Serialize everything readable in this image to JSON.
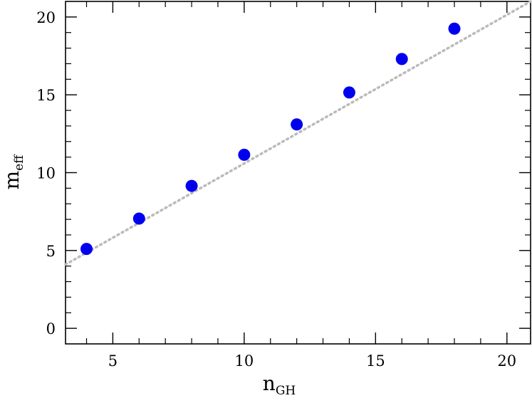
{
  "chart_data": {
    "type": "scatter",
    "xlabel": "n",
    "xlabel_sub": "GH",
    "ylabel": "m",
    "ylabel_sub": "eff",
    "xlim": [
      3.2,
      20.9
    ],
    "ylim": [
      -1.0,
      21.0
    ],
    "x_ticks": [
      5,
      10,
      15,
      20
    ],
    "y_ticks": [
      0,
      5,
      10,
      15,
      20
    ],
    "x_tick_labels": [
      "5",
      "10",
      "15",
      "20"
    ],
    "y_tick_labels": [
      "0",
      "5",
      "10",
      "15",
      "20"
    ],
    "grid": false,
    "series": [
      {
        "x": [
          4,
          6,
          8,
          10,
          12,
          14,
          16,
          18
        ],
        "y": [
          5.1,
          7.05,
          9.15,
          11.15,
          13.1,
          15.15,
          17.3,
          19.25
        ],
        "color": "#0000ee",
        "marker": "circle"
      }
    ],
    "reference_line": {
      "style": "dotted",
      "color": "#bbbbbb",
      "x": [
        3.2,
        20.9
      ],
      "y": [
        4.1,
        21.0
      ]
    }
  }
}
